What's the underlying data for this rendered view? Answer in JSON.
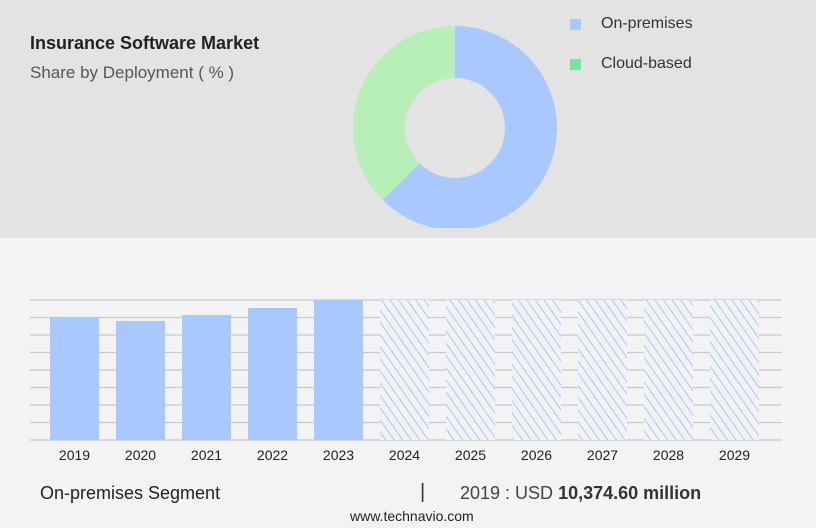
{
  "chart_data": [
    {
      "type": "pie",
      "title": "Insurance Software Market",
      "subtitle": "Share by Deployment ( % )",
      "donut": true,
      "legend_placement": "right",
      "slices": [
        {
          "name": "On-premises",
          "value": 62.5,
          "color": "#a8c8ff"
        },
        {
          "name": "Cloud-based",
          "value": 37.5,
          "color": "#b8eeb8"
        }
      ],
      "legend_colors": {
        "On-premises": "#a8c8ff",
        "Cloud-based": "#77e699"
      }
    },
    {
      "type": "bar",
      "categories": [
        "2019",
        "2020",
        "2021",
        "2022",
        "2023",
        "2024",
        "2025",
        "2026",
        "2027",
        "2028",
        "2029"
      ],
      "values": [
        10374.6,
        10037,
        10543,
        11134,
        11809,
        null,
        null,
        null,
        null,
        null,
        null
      ],
      "forecast": [
        false,
        false,
        false,
        false,
        false,
        true,
        true,
        true,
        true,
        true,
        true
      ],
      "grid": true,
      "ylim": [
        0,
        11809
      ],
      "bar_color": "#a8c8ff"
    }
  ],
  "footer": {
    "segment": "On-premises Segment",
    "separator": "|",
    "year_label": "2019 : USD",
    "value": "10,374.60 million",
    "site": "www.technavio.com"
  }
}
